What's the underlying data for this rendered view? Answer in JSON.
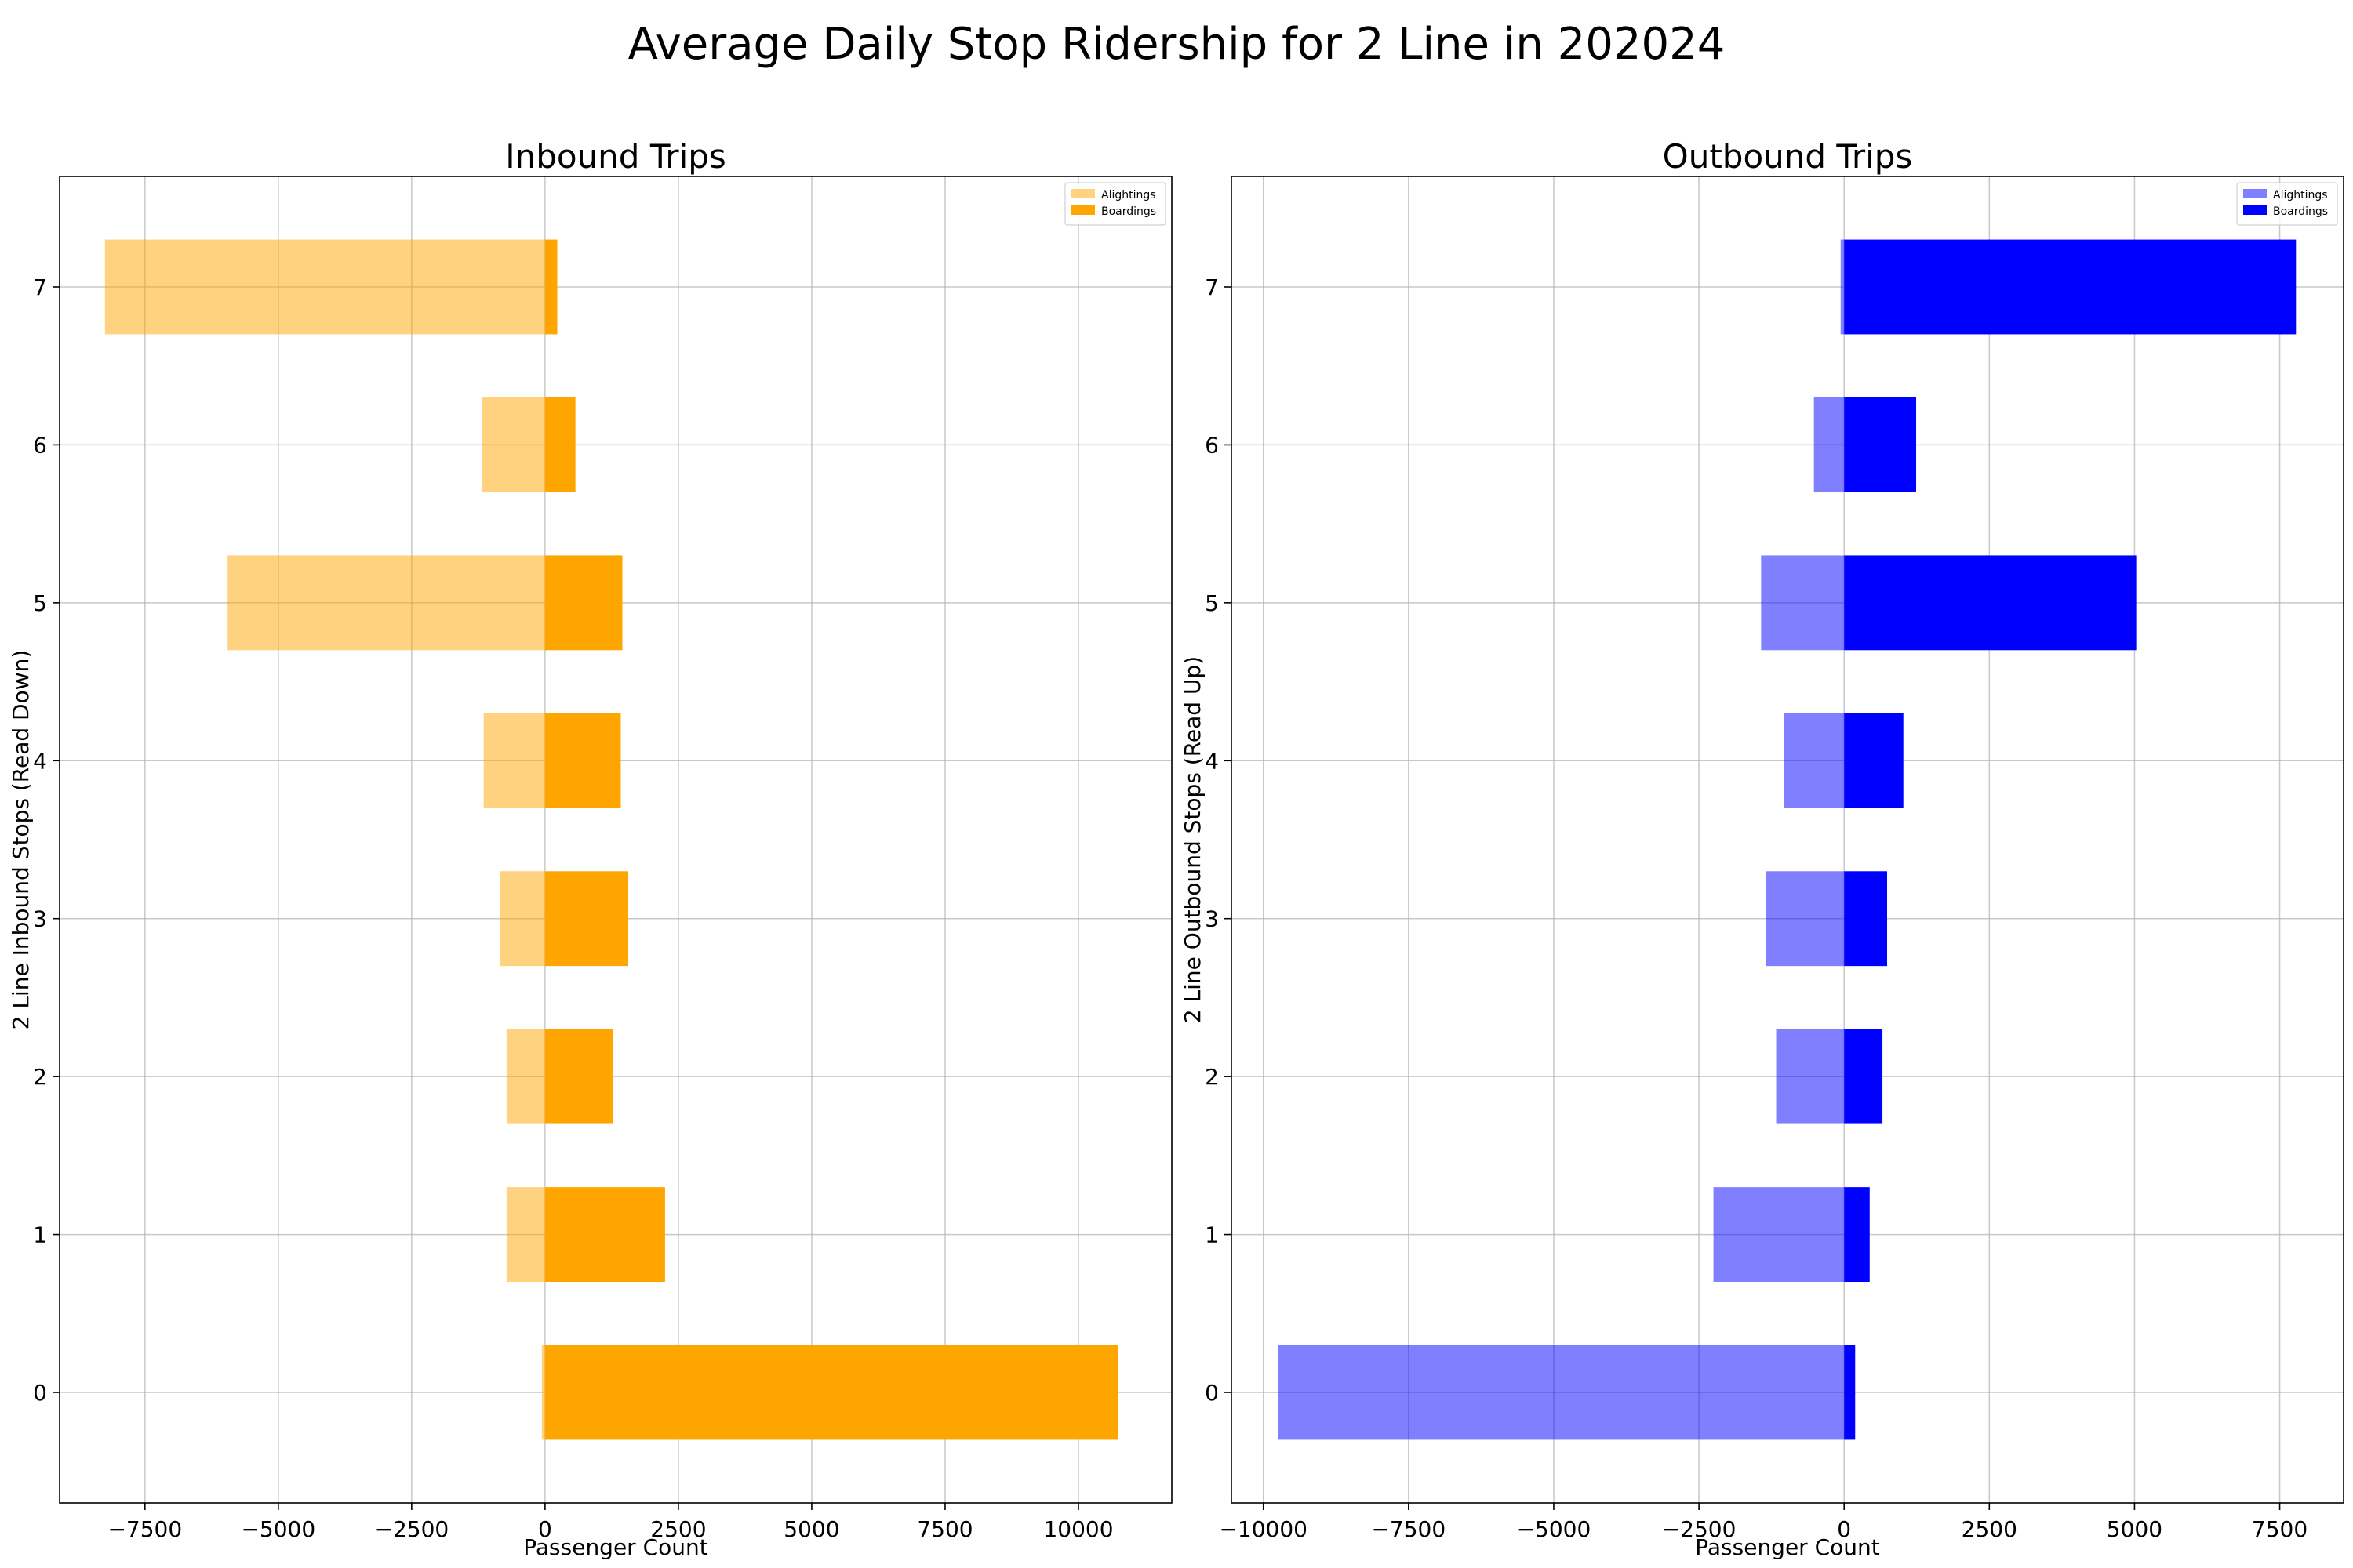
{
  "figure": {
    "title": "Average Daily Stop Ridership for 2 Line in 202024"
  },
  "chart_data": [
    {
      "type": "bar",
      "orientation": "horizontal",
      "title": "Inbound Trips",
      "xlabel": "Passenger Count",
      "ylabel": "2 Line Inbound Stops (Read Down)",
      "categories": [
        "0",
        "1",
        "2",
        "3",
        "4",
        "5",
        "6",
        "7"
      ],
      "xlim": [
        -9100,
        11750
      ],
      "ylim": [
        -0.7,
        7.7
      ],
      "xticks": [
        -7500,
        -5000,
        -2500,
        0,
        2500,
        5000,
        7500,
        10000
      ],
      "xtick_labels": [
        "−7500",
        "−5000",
        "−2500",
        "0",
        "2500",
        "5000",
        "7500",
        "10000"
      ],
      "grid": true,
      "legend_position": "top-right",
      "series": [
        {
          "name": "Alightings",
          "color": "#FFA500",
          "opacity": 0.5,
          "values": [
            -60,
            -720,
            -720,
            -850,
            -1150,
            -5950,
            -1180,
            -8250
          ]
        },
        {
          "name": "Boardings",
          "color": "#FFA500",
          "opacity": 1.0,
          "values": [
            10750,
            2250,
            1280,
            1560,
            1420,
            1450,
            570,
            230
          ]
        }
      ]
    },
    {
      "type": "bar",
      "orientation": "horizontal",
      "title": "Outbound Trips",
      "xlabel": "Passenger Count",
      "ylabel": "2 Line Outbound Stops (Read Up)",
      "categories": [
        "0",
        "1",
        "2",
        "3",
        "4",
        "5",
        "6",
        "7"
      ],
      "xlim": [
        -10550,
        8600
      ],
      "ylim": [
        -0.7,
        7.7
      ],
      "xticks": [
        -10000,
        -7500,
        -5000,
        -2500,
        0,
        2500,
        5000,
        7500
      ],
      "xtick_labels": [
        "−10000",
        "−7500",
        "−5000",
        "−2500",
        "0",
        "2500",
        "5000",
        "7500"
      ],
      "grid": true,
      "legend_position": "top-right",
      "series": [
        {
          "name": "Alightings",
          "color": "#0000FF",
          "opacity": 0.5,
          "values": [
            -9750,
            -2250,
            -1170,
            -1350,
            -1030,
            -1430,
            -520,
            -60
          ]
        },
        {
          "name": "Boardings",
          "color": "#0000FF",
          "opacity": 1.0,
          "values": [
            190,
            440,
            660,
            740,
            1020,
            5030,
            1240,
            7780
          ]
        }
      ]
    }
  ]
}
